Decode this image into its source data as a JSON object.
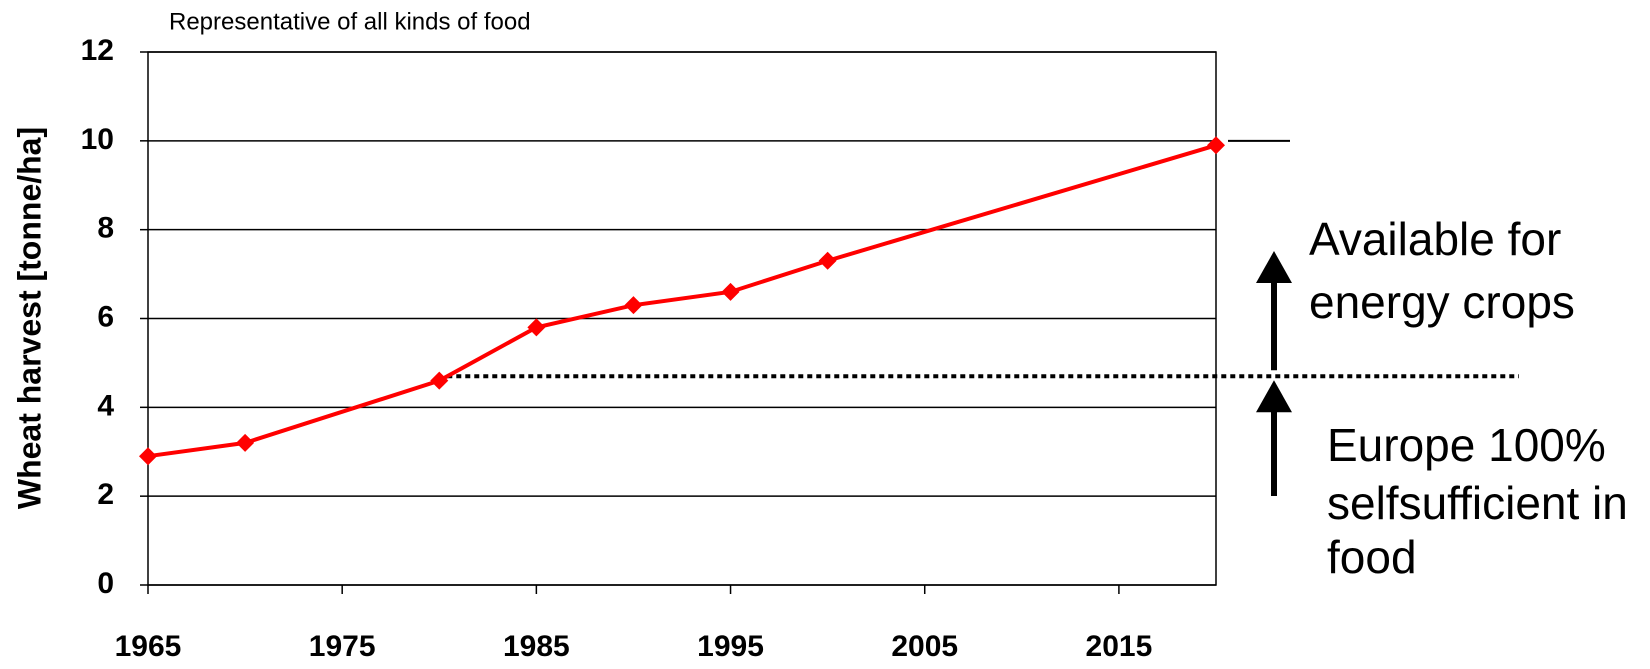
{
  "chart_data": {
    "type": "line",
    "title": "Representative of all kinds of food",
    "y_label": "Wheat harvest [tonne/ha]",
    "annotations": [
      [
        "Available for",
        "energy crops"
      ],
      [
        "Europe 100%",
        "selfsufficient in",
        "food"
      ]
    ],
    "x": [
      1965,
      1970,
      1980,
      1985,
      1990,
      1995,
      2000,
      2020
    ],
    "series": [
      {
        "name": "Wheat harvest",
        "color": "#ff0000",
        "values": [
          2.9,
          3.2,
          4.6,
          5.8,
          6.3,
          6.6,
          7.3,
          9.9
        ]
      }
    ],
    "reference_lines": [
      4.7,
      10
    ],
    "xlim": [
      1965,
      2020
    ],
    "xticks": [
      1965,
      1975,
      1985,
      1995,
      2005,
      2015
    ],
    "ylim": [
      0,
      12
    ],
    "yticks": [
      0,
      2,
      4,
      6,
      8,
      10,
      12
    ],
    "grid": true
  }
}
